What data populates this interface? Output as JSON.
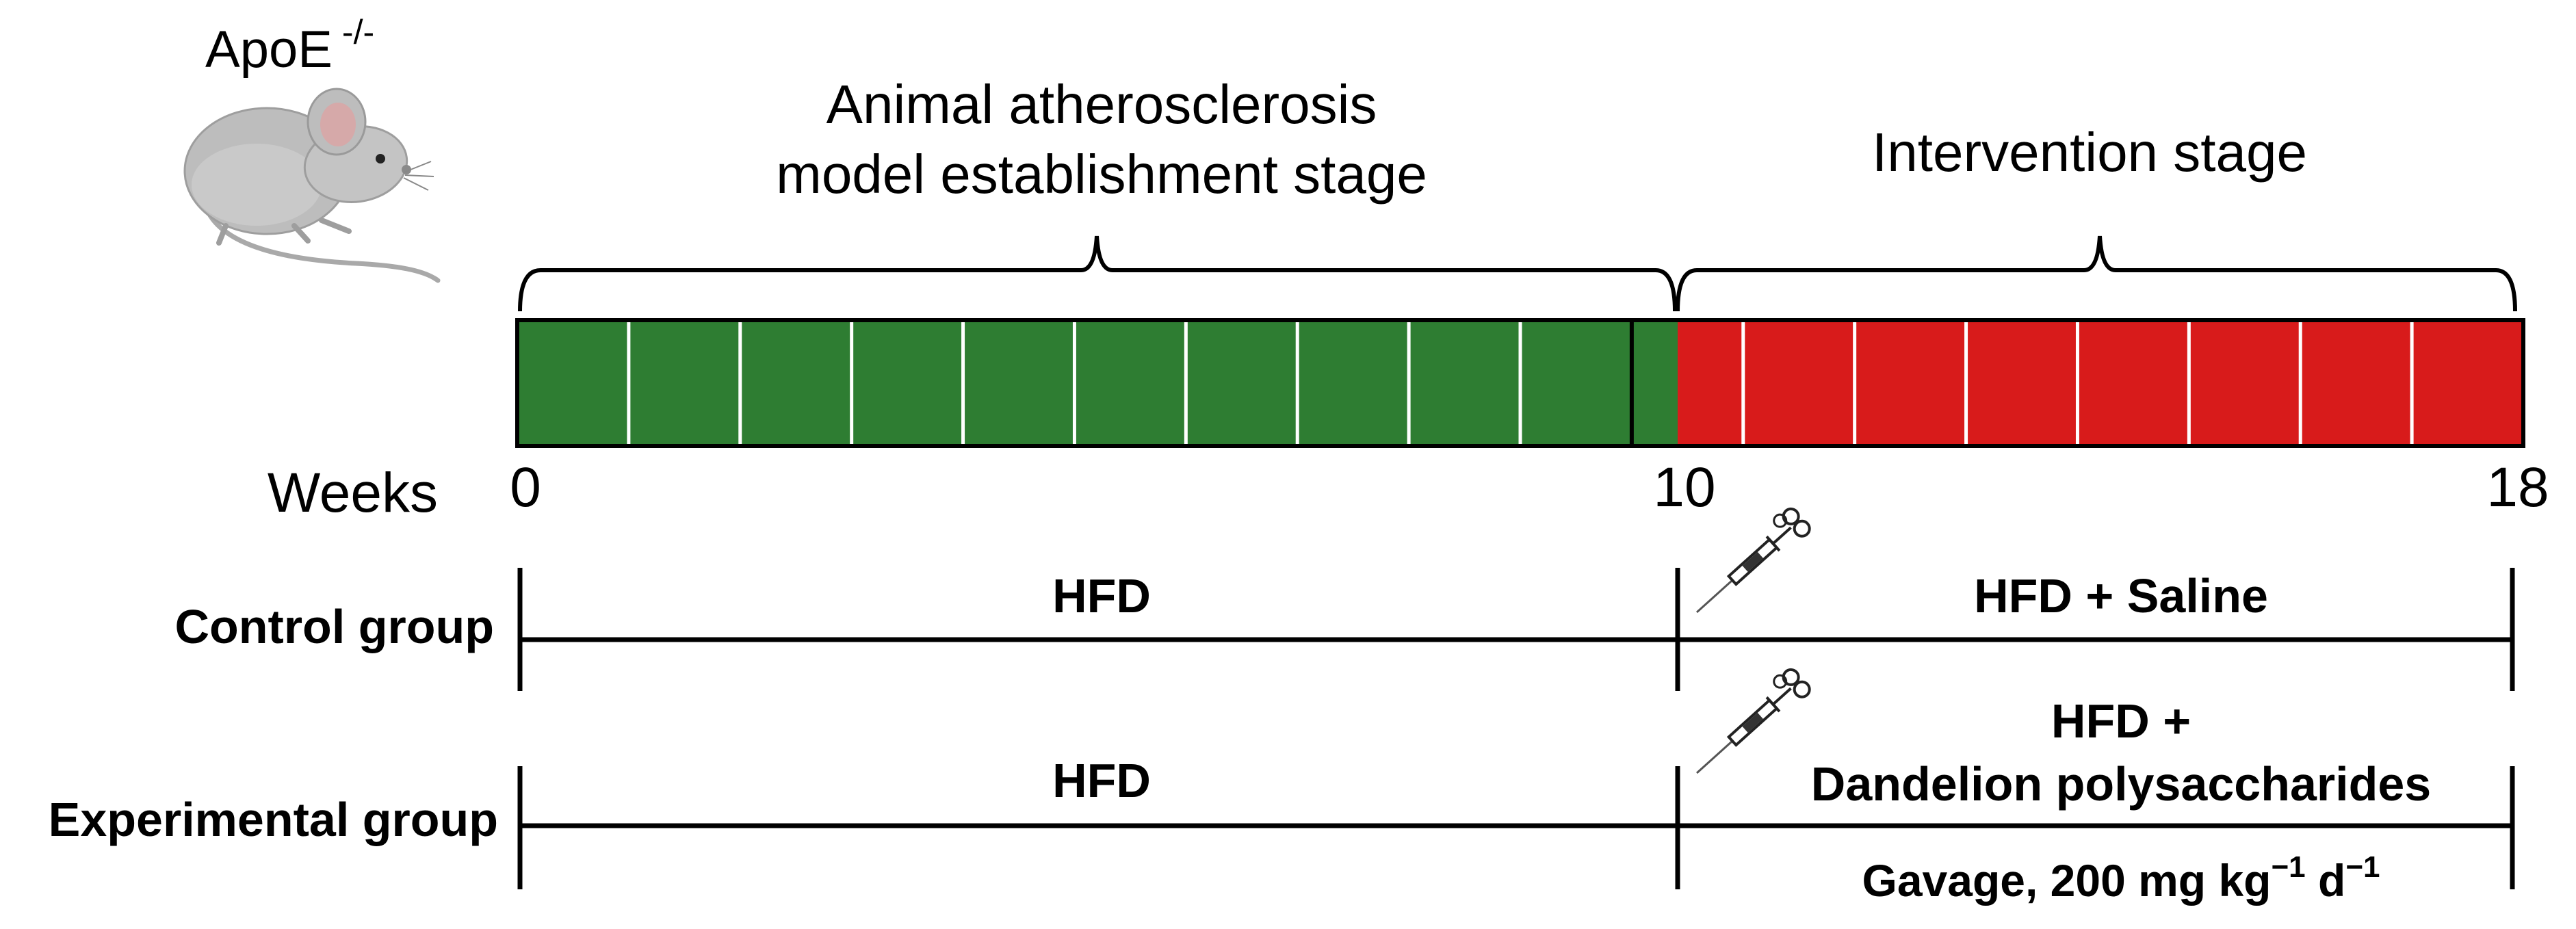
{
  "header": {
    "strain_label": "ApoE",
    "strain_superscript": "-/-"
  },
  "stages": {
    "establishment_line1": "Animal atherosclerosis",
    "establishment_line2": "model establishment stage",
    "intervention": "Intervention stage"
  },
  "timeline": {
    "axis_label": "Weeks",
    "total_weeks": 18,
    "switch_week": 10,
    "tick_labels": [
      "0",
      "10",
      "18"
    ],
    "establishment_color": "#2e7d32",
    "intervention_color": "#d81b1b",
    "divider_color": "#ffffff"
  },
  "groups": {
    "control": {
      "label": "Control group",
      "phase1": "HFD",
      "phase2": "HFD + Saline"
    },
    "experimental": {
      "label": "Experimental group",
      "phase1": "HFD",
      "phase2_line1": "HFD +",
      "phase2_line2": "Dandelion polysaccharides",
      "dosage": "Gavage, 200 mg kg",
      "dosage_exp1": "−1",
      "dosage_unit2": " d",
      "dosage_exp2": "−1"
    }
  },
  "icons": {
    "animal": "mouse-icon",
    "administration": "syringe-icon"
  }
}
